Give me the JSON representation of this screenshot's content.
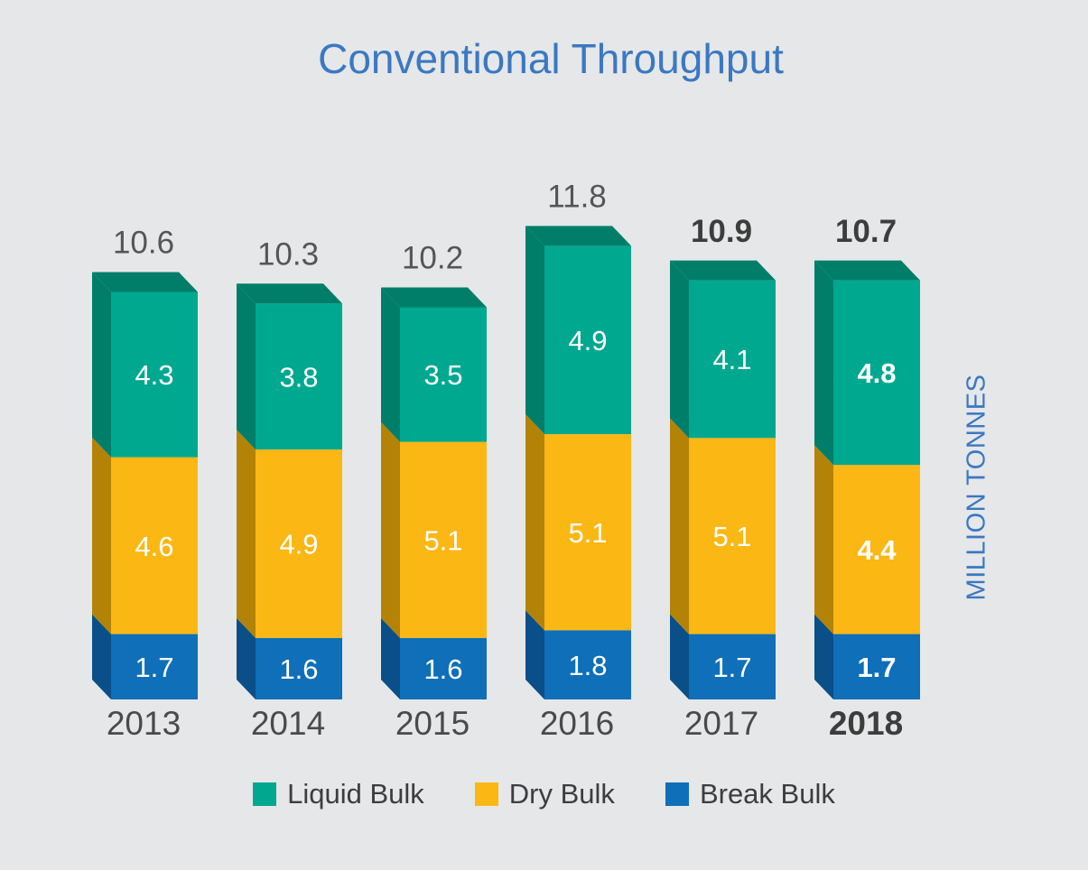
{
  "chart_data": {
    "type": "bar",
    "stacked": true,
    "title": "Conventional Throughput",
    "ylabel": "MILLION TONNES",
    "categories": [
      "2013",
      "2014",
      "2015",
      "2016",
      "2017",
      "2018"
    ],
    "highlight_category": "2018",
    "series": [
      {
        "name": "Break Bulk",
        "color": "#0f6fb8",
        "side_color": "#0a4f88",
        "values": [
          1.7,
          1.6,
          1.6,
          1.8,
          1.7,
          1.7
        ]
      },
      {
        "name": "Dry Bulk",
        "color": "#fbb714",
        "side_color": "#b38307",
        "values": [
          4.6,
          4.9,
          5.1,
          5.1,
          5.1,
          4.4
        ]
      },
      {
        "name": "Liquid Bulk",
        "color": "#00a88f",
        "side_color": "#007e69",
        "values": [
          4.3,
          3.8,
          3.5,
          4.9,
          4.1,
          4.8
        ]
      }
    ],
    "totals": [
      "10.6",
      "10.3",
      "10.2",
      "11.8",
      "10.9",
      "10.7"
    ],
    "bold_totals": [
      false,
      false,
      false,
      false,
      true,
      true
    ],
    "legend": [
      "Liquid Bulk",
      "Dry Bulk",
      "Break Bulk"
    ],
    "legend_colors": [
      "#00a88f",
      "#fbb714",
      "#0f6fb8"
    ],
    "legend_position": "bottom"
  }
}
